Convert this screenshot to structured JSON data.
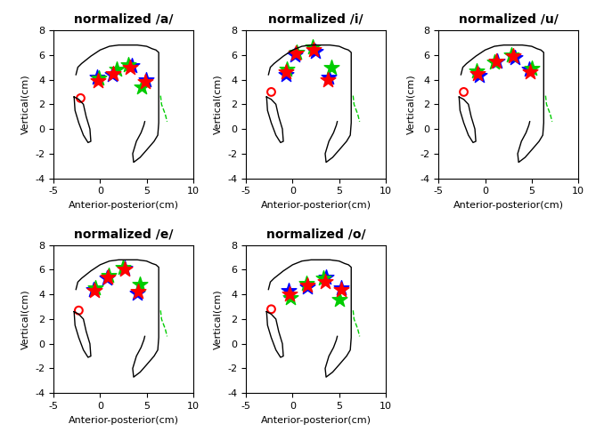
{
  "chart_data": [
    {
      "type": "scatter",
      "title": "normalized /a/",
      "xlabel": "Anterior-posterior(cm)",
      "ylabel": "Vertical(cm)",
      "xlim": [
        -5,
        10
      ],
      "ylim": [
        -4,
        8
      ],
      "xticks": [
        -5,
        0,
        5,
        10
      ],
      "yticks": [
        -4,
        -2,
        0,
        2,
        4,
        6,
        8
      ],
      "series": [
        {
          "type": "line",
          "color": "#000000",
          "line_style": "solid",
          "x": [
            -2.6,
            -2.4,
            -2.0,
            -1.5,
            -1.0,
            0.0,
            1.0,
            2.0,
            3.0,
            4.0,
            5.0,
            5.6,
            6.0,
            6.3,
            6.3,
            6.3,
            6.3,
            6.2,
            5.8,
            5.0,
            4.3,
            3.6,
            3.5,
            3.9,
            4.4,
            4.7,
            4.8
          ],
          "y": [
            4.4,
            5.0,
            5.3,
            5.6,
            5.9,
            6.4,
            6.7,
            6.8,
            6.8,
            6.8,
            6.7,
            6.5,
            6.4,
            6.2,
            4.0,
            2.0,
            0.5,
            -0.5,
            -1.0,
            -1.7,
            -2.3,
            -2.7,
            -2.0,
            -1.0,
            -0.3,
            0.3,
            0.6
          ]
        },
        {
          "type": "line",
          "color": "#000000",
          "line_style": "solid",
          "x": [
            -2.8,
            -2.7,
            -2.3,
            -1.8,
            -1.3,
            -1.0,
            -1.1,
            -1.5,
            -1.8,
            -2.3,
            -2.8
          ],
          "y": [
            2.6,
            1.5,
            0.5,
            -0.5,
            -1.1,
            -1.0,
            0.0,
            1.0,
            2.0,
            2.4,
            2.6
          ]
        },
        {
          "type": "line",
          "color": "#00cc00",
          "line_style": "dashed",
          "x": [
            6.5,
            6.6,
            7.0,
            7.2
          ],
          "y": [
            2.7,
            2.0,
            1.2,
            0.6
          ]
        },
        {
          "type": "scatter",
          "color": "#0000ff",
          "marker": "*",
          "x": [
            -0.3,
            1.3,
            3.4,
            4.9
          ],
          "y": [
            4.2,
            4.4,
            5.1,
            4.0
          ]
        },
        {
          "type": "scatter",
          "color": "#00cc00",
          "marker": "*",
          "x": [
            -0.1,
            1.8,
            3.0,
            4.5
          ],
          "y": [
            4.1,
            4.8,
            5.2,
            3.4
          ]
        },
        {
          "type": "scatter",
          "color": "#ff0000",
          "marker": "*",
          "x": [
            -0.2,
            1.4,
            3.2,
            4.8
          ],
          "y": [
            3.9,
            4.5,
            5.0,
            3.8
          ]
        },
        {
          "type": "scatter",
          "color": "#ff0000",
          "marker": "o",
          "x": [
            -2.1
          ],
          "y": [
            2.5
          ]
        }
      ]
    },
    {
      "type": "scatter",
      "title": "normalized /i/",
      "xlabel": "Anterior-posterior(cm)",
      "ylabel": "Vertical(cm)",
      "xlim": [
        -5,
        10
      ],
      "ylim": [
        -4,
        8
      ],
      "xticks": [
        -5,
        0,
        5,
        10
      ],
      "yticks": [
        -4,
        -2,
        0,
        2,
        4,
        6,
        8
      ],
      "series": [
        {
          "type": "line",
          "color": "#000000",
          "line_style": "solid",
          "x": [
            -2.6,
            -2.4,
            -2.0,
            -1.5,
            -1.0,
            0.0,
            1.0,
            2.0,
            3.0,
            4.0,
            5.0,
            5.6,
            6.0,
            6.3,
            6.3,
            6.3,
            6.3,
            6.2,
            5.8,
            5.0,
            4.3,
            3.6,
            3.5,
            3.9,
            4.4,
            4.7,
            4.8
          ],
          "y": [
            4.4,
            5.0,
            5.3,
            5.6,
            5.9,
            6.4,
            6.7,
            6.8,
            6.8,
            6.8,
            6.7,
            6.5,
            6.4,
            6.2,
            4.0,
            2.0,
            0.5,
            -0.5,
            -1.0,
            -1.7,
            -2.3,
            -2.7,
            -2.0,
            -1.0,
            -0.3,
            0.3,
            0.6
          ]
        },
        {
          "type": "line",
          "color": "#000000",
          "line_style": "solid",
          "x": [
            -2.8,
            -2.7,
            -2.3,
            -1.8,
            -1.3,
            -1.0,
            -1.1,
            -1.5,
            -1.8,
            -2.3,
            -2.8
          ],
          "y": [
            2.6,
            1.5,
            0.5,
            -0.5,
            -1.1,
            -1.0,
            0.0,
            1.0,
            2.0,
            2.4,
            2.6
          ]
        },
        {
          "type": "line",
          "color": "#00cc00",
          "line_style": "dashed",
          "x": [
            6.5,
            6.6,
            7.0,
            7.2
          ],
          "y": [
            2.7,
            2.0,
            1.2,
            0.6
          ]
        },
        {
          "type": "scatter",
          "color": "#0000ff",
          "marker": "*",
          "x": [
            -0.7,
            0.2,
            2.4,
            3.9
          ],
          "y": [
            4.4,
            6.0,
            6.3,
            4.2
          ]
        },
        {
          "type": "scatter",
          "color": "#00cc00",
          "marker": "*",
          "x": [
            -0.6,
            0.4,
            2.2,
            4.2
          ],
          "y": [
            4.8,
            6.2,
            6.6,
            5.0
          ]
        },
        {
          "type": "scatter",
          "color": "#ff0000",
          "marker": "*",
          "x": [
            -0.7,
            0.3,
            2.3,
            3.8
          ],
          "y": [
            4.6,
            6.1,
            6.4,
            4.0
          ]
        },
        {
          "type": "scatter",
          "color": "#ff0000",
          "marker": "o",
          "x": [
            -2.3
          ],
          "y": [
            3.0
          ]
        }
      ]
    },
    {
      "type": "scatter",
      "title": "normalized /u/",
      "xlabel": "Anterior-posterior(cm)",
      "ylabel": "Vertical(cm)",
      "xlim": [
        -5,
        10
      ],
      "ylim": [
        -4,
        8
      ],
      "xticks": [
        -5,
        0,
        5,
        10
      ],
      "yticks": [
        -4,
        -2,
        0,
        2,
        4,
        6,
        8
      ],
      "series": [
        {
          "type": "line",
          "color": "#000000",
          "line_style": "solid",
          "x": [
            -2.6,
            -2.4,
            -2.0,
            -1.5,
            -1.0,
            0.0,
            1.0,
            2.0,
            3.0,
            4.0,
            5.0,
            5.6,
            6.0,
            6.3,
            6.3,
            6.3,
            6.3,
            6.2,
            5.8,
            5.0,
            4.3,
            3.6,
            3.5,
            3.9,
            4.4,
            4.7,
            4.8
          ],
          "y": [
            4.4,
            5.0,
            5.3,
            5.6,
            5.9,
            6.4,
            6.7,
            6.8,
            6.8,
            6.8,
            6.7,
            6.5,
            6.4,
            6.2,
            4.0,
            2.0,
            0.5,
            -0.5,
            -1.0,
            -1.7,
            -2.3,
            -2.7,
            -2.0,
            -1.0,
            -0.3,
            0.3,
            0.6
          ]
        },
        {
          "type": "line",
          "color": "#000000",
          "line_style": "solid",
          "x": [
            -2.8,
            -2.7,
            -2.3,
            -1.8,
            -1.3,
            -1.0,
            -1.1,
            -1.5,
            -1.8,
            -2.3,
            -2.8
          ],
          "y": [
            2.6,
            1.5,
            0.5,
            -0.5,
            -1.1,
            -1.0,
            0.0,
            1.0,
            2.0,
            2.4,
            2.6
          ]
        },
        {
          "type": "line",
          "color": "#00cc00",
          "line_style": "dashed",
          "x": [
            6.5,
            6.6,
            7.0,
            7.2
          ],
          "y": [
            2.7,
            2.0,
            1.2,
            0.6
          ]
        },
        {
          "type": "scatter",
          "color": "#0000ff",
          "marker": "*",
          "x": [
            -0.6,
            1.3,
            3.2,
            4.7
          ],
          "y": [
            4.3,
            5.5,
            5.8,
            4.8
          ]
        },
        {
          "type": "scatter",
          "color": "#00cc00",
          "marker": "*",
          "x": [
            -0.9,
            1.0,
            2.8,
            5.0
          ],
          "y": [
            4.7,
            5.4,
            6.0,
            4.9
          ]
        },
        {
          "type": "scatter",
          "color": "#ff0000",
          "marker": "*",
          "x": [
            -0.8,
            1.2,
            3.0,
            4.8
          ],
          "y": [
            4.5,
            5.5,
            5.9,
            4.6
          ]
        },
        {
          "type": "scatter",
          "color": "#ff0000",
          "marker": "o",
          "x": [
            -2.3
          ],
          "y": [
            3.0
          ]
        }
      ]
    },
    {
      "type": "scatter",
      "title": "normalized /e/",
      "xlabel": "Anterior-posterior(cm)",
      "ylabel": "Vertical(cm)",
      "xlim": [
        -5,
        10
      ],
      "ylim": [
        -4,
        8
      ],
      "xticks": [
        -5,
        0,
        5,
        10
      ],
      "yticks": [
        -4,
        -2,
        0,
        2,
        4,
        6,
        8
      ],
      "series": [
        {
          "type": "line",
          "color": "#000000",
          "line_style": "solid",
          "x": [
            -2.6,
            -2.4,
            -2.0,
            -1.5,
            -1.0,
            0.0,
            1.0,
            2.0,
            3.0,
            4.0,
            5.0,
            5.6,
            6.0,
            6.3,
            6.3,
            6.3,
            6.3,
            6.2,
            5.8,
            5.0,
            4.3,
            3.6,
            3.5,
            3.9,
            4.4,
            4.7,
            4.8
          ],
          "y": [
            4.4,
            5.0,
            5.3,
            5.6,
            5.9,
            6.4,
            6.7,
            6.8,
            6.8,
            6.8,
            6.7,
            6.5,
            6.4,
            6.2,
            4.0,
            2.0,
            0.5,
            -0.5,
            -1.0,
            -1.7,
            -2.3,
            -2.7,
            -2.0,
            -1.0,
            -0.3,
            0.3,
            0.6
          ]
        },
        {
          "type": "line",
          "color": "#000000",
          "line_style": "solid",
          "x": [
            -2.8,
            -2.7,
            -2.3,
            -1.8,
            -1.3,
            -1.0,
            -1.1,
            -1.5,
            -1.8,
            -2.3,
            -2.8
          ],
          "y": [
            2.6,
            1.5,
            0.5,
            -0.5,
            -1.1,
            -1.0,
            0.0,
            1.0,
            2.0,
            2.4,
            2.6
          ]
        },
        {
          "type": "line",
          "color": "#00cc00",
          "line_style": "dashed",
          "x": [
            6.5,
            6.6,
            7.0,
            7.2
          ],
          "y": [
            2.7,
            2.0,
            1.2,
            0.6
          ]
        },
        {
          "type": "scatter",
          "color": "#0000ff",
          "marker": "*",
          "x": [
            -0.7,
            0.7,
            2.6,
            4.0
          ],
          "y": [
            4.4,
            5.3,
            6.1,
            4.1
          ]
        },
        {
          "type": "scatter",
          "color": "#00cc00",
          "marker": "*",
          "x": [
            -0.5,
            0.9,
            2.5,
            4.3
          ],
          "y": [
            4.5,
            5.5,
            6.2,
            4.8
          ]
        },
        {
          "type": "scatter",
          "color": "#ff0000",
          "marker": "*",
          "x": [
            -0.6,
            0.8,
            2.6,
            4.1
          ],
          "y": [
            4.3,
            5.4,
            6.0,
            4.2
          ]
        },
        {
          "type": "scatter",
          "color": "#ff0000",
          "marker": "o",
          "x": [
            -2.3
          ],
          "y": [
            2.7
          ]
        }
      ]
    },
    {
      "type": "scatter",
      "title": "normalized /o/",
      "xlabel": "Anterior-posterior(cm)",
      "ylabel": "Vertical(cm)",
      "xlim": [
        -5,
        10
      ],
      "ylim": [
        -4,
        8
      ],
      "xticks": [
        -5,
        0,
        5,
        10
      ],
      "yticks": [
        -4,
        -2,
        0,
        2,
        4,
        6,
        8
      ],
      "series": [
        {
          "type": "line",
          "color": "#000000",
          "line_style": "solid",
          "x": [
            -2.6,
            -2.4,
            -2.0,
            -1.5,
            -1.0,
            0.0,
            1.0,
            2.0,
            3.0,
            4.0,
            5.0,
            5.6,
            6.0,
            6.3,
            6.3,
            6.3,
            6.3,
            6.2,
            5.8,
            5.0,
            4.3,
            3.6,
            3.5,
            3.9,
            4.4,
            4.7,
            4.8
          ],
          "y": [
            4.4,
            5.0,
            5.3,
            5.6,
            5.9,
            6.4,
            6.7,
            6.8,
            6.8,
            6.8,
            6.7,
            6.5,
            6.4,
            6.2,
            4.0,
            2.0,
            0.5,
            -0.5,
            -1.0,
            -1.7,
            -2.3,
            -2.7,
            -2.0,
            -1.0,
            -0.3,
            0.3,
            0.6
          ]
        },
        {
          "type": "line",
          "color": "#000000",
          "line_style": "solid",
          "x": [
            -2.8,
            -2.7,
            -2.3,
            -1.8,
            -1.3,
            -1.0,
            -1.1,
            -1.5,
            -1.8,
            -2.3,
            -2.8
          ],
          "y": [
            2.6,
            1.5,
            0.5,
            -0.5,
            -1.1,
            -1.0,
            0.0,
            1.0,
            2.0,
            2.4,
            2.6
          ]
        },
        {
          "type": "line",
          "color": "#00cc00",
          "line_style": "dashed",
          "x": [
            6.5,
            6.6,
            7.0,
            7.2
          ],
          "y": [
            2.7,
            2.0,
            1.2,
            0.6
          ]
        },
        {
          "type": "scatter",
          "color": "#0000ff",
          "marker": "*",
          "x": [
            -0.4,
            1.6,
            3.6,
            5.2
          ],
          "y": [
            4.3,
            4.6,
            5.4,
            4.5
          ]
        },
        {
          "type": "scatter",
          "color": "#00cc00",
          "marker": "*",
          "x": [
            -0.2,
            1.5,
            3.3,
            5.0
          ],
          "y": [
            3.7,
            4.9,
            5.3,
            3.6
          ]
        },
        {
          "type": "scatter",
          "color": "#ff0000",
          "marker": "*",
          "x": [
            -0.3,
            1.6,
            3.5,
            5.2
          ],
          "y": [
            4.0,
            4.7,
            5.0,
            4.4
          ]
        },
        {
          "type": "scatter",
          "color": "#ff0000",
          "marker": "o",
          "x": [
            -2.3
          ],
          "y": [
            2.8
          ]
        }
      ]
    }
  ]
}
